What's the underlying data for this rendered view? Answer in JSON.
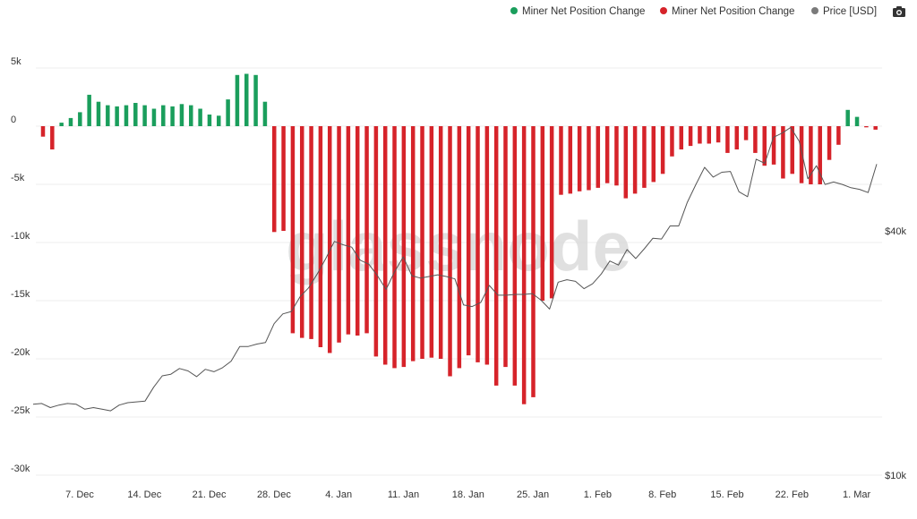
{
  "legend": {
    "items": [
      {
        "label": "Miner Net Position Change",
        "color": "#1a9e5c"
      },
      {
        "label": "Miner Net Position Change",
        "color": "#d6232a"
      },
      {
        "label": "Price [USD]",
        "color": "#7a7a7a"
      }
    ],
    "camera_icon": "camera-icon"
  },
  "watermark": "glassnode",
  "colors": {
    "positive": "#1a9e5c",
    "negative": "#d6232a",
    "price": "#7a7a7a",
    "grid": "#ececec",
    "axis_text": "#333333"
  },
  "chart_data": {
    "type": "bar",
    "title": "",
    "xlabel": "",
    "ylabel": "",
    "ylim": [
      -30000,
      5000
    ],
    "y_ticks": [
      5000,
      0,
      -5000,
      -10000,
      -15000,
      -20000,
      -25000,
      -30000
    ],
    "y_tick_labels": [
      "5k",
      "0",
      "-5k",
      "-10k",
      "-15k",
      "-20k",
      "-25k",
      "-30k"
    ],
    "y2_ticks": [
      40000,
      10000
    ],
    "y2_tick_labels": [
      "$40k",
      "$10k"
    ],
    "x_tick_labels": [
      "7. Dec",
      "14. Dec",
      "21. Dec",
      "28. Dec",
      "4. Jan",
      "11. Jan",
      "18. Jan",
      "25. Jan",
      "1. Feb",
      "8. Feb",
      "15. Feb",
      "22. Feb",
      "1. Mar"
    ],
    "grid": true,
    "legend_position": "top-right",
    "series": [
      {
        "name": "Miner Net Position Change",
        "values": [
          -900,
          -2000,
          300,
          700,
          1200,
          2700,
          2100,
          1800,
          1700,
          1800,
          2000,
          1800,
          1500,
          1800,
          1700,
          1900,
          1800,
          1500,
          1000,
          900,
          2300,
          4400,
          4500,
          4400,
          2100,
          -9100,
          -9000,
          -17800,
          -18200,
          -18300,
          -19000,
          -19500,
          -18600,
          -17900,
          -18000,
          -17800,
          -19800,
          -20500,
          -20800,
          -20700,
          -20200,
          -20000,
          -19900,
          -20000,
          -21500,
          -20800,
          -19700,
          -20300,
          -20500,
          -22300,
          -20700,
          -22300,
          -23900,
          -23300,
          -15000,
          -14800,
          -5900,
          -5800,
          -5600,
          -5500,
          -5300,
          -4900,
          -5100,
          -6200,
          -5800,
          -5300,
          -4800,
          -4100,
          -2600,
          -2000,
          -1700,
          -1500,
          -1500,
          -1400,
          -2300,
          -2000,
          -1200,
          -2300,
          -3400,
          -3300,
          -4500,
          -4100,
          -4900,
          -5000,
          -5000,
          -2900,
          -1600,
          1400,
          800,
          -100,
          -300
        ]
      },
      {
        "name": "Price [USD]",
        "values": [
          18700,
          18800,
          18300,
          18600,
          18800,
          18700,
          18100,
          18300,
          18100,
          17900,
          18600,
          18900,
          19000,
          19100,
          20800,
          22200,
          22400,
          23100,
          22800,
          22100,
          23000,
          22700,
          23200,
          24000,
          25800,
          25800,
          26100,
          26300,
          28600,
          29800,
          30100,
          31900,
          33000,
          34700,
          36600,
          38700,
          38300,
          38000,
          36400,
          35900,
          34500,
          32800,
          35000,
          36800,
          34500,
          34200,
          34400,
          34600,
          34400,
          34100,
          30900,
          30700,
          31200,
          33300,
          32100,
          32100,
          32200,
          32200,
          32300,
          31500,
          30400,
          33700,
          34000,
          33800,
          32900,
          33500,
          34700,
          36300,
          35800,
          37700,
          36600,
          37800,
          39100,
          39000,
          40600,
          40600,
          43500,
          45700,
          47800,
          46600,
          47200,
          47300,
          44800,
          44200,
          48800,
          48300,
          51500,
          52000,
          52700,
          51000,
          46400,
          48000,
          45700,
          46000,
          45700,
          45300,
          45100,
          44700,
          48200
        ]
      }
    ]
  }
}
